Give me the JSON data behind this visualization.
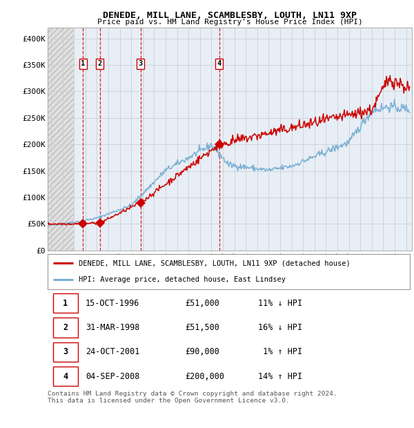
{
  "title": "DENEDE, MILL LANE, SCAMBLESBY, LOUTH, LN11 9XP",
  "subtitle": "Price paid vs. HM Land Registry's House Price Index (HPI)",
  "ylim": [
    0,
    420000
  ],
  "yticks": [
    0,
    50000,
    100000,
    150000,
    200000,
    250000,
    300000,
    350000,
    400000
  ],
  "ytick_labels": [
    "£0",
    "£50K",
    "£100K",
    "£150K",
    "£200K",
    "£250K",
    "£300K",
    "£350K",
    "£400K"
  ],
  "xlim_start": 1993.7,
  "xlim_end": 2025.5,
  "xticks": [
    1994,
    1995,
    1996,
    1997,
    1998,
    1999,
    2000,
    2001,
    2002,
    2003,
    2004,
    2005,
    2006,
    2007,
    2008,
    2009,
    2010,
    2011,
    2012,
    2013,
    2014,
    2015,
    2016,
    2017,
    2018,
    2019,
    2020,
    2021,
    2022,
    2023,
    2024,
    2025
  ],
  "sale_dates_num": [
    1996.79,
    1998.25,
    2001.81,
    2008.68
  ],
  "sale_prices": [
    51000,
    51500,
    90000,
    200000
  ],
  "sale_labels": [
    "1",
    "2",
    "3",
    "4"
  ],
  "vline_color": "#cc0000",
  "sale_color": "#cc0000",
  "legend_line1": "DENEDE, MILL LANE, SCAMBLESBY, LOUTH, LN11 9XP (detached house)",
  "legend_line2": "HPI: Average price, detached house, East Lindsey",
  "table_rows": [
    [
      "1",
      "15-OCT-1996",
      "£51,000",
      "11% ↓ HPI"
    ],
    [
      "2",
      "31-MAR-1998",
      "£51,500",
      "16% ↓ HPI"
    ],
    [
      "3",
      "24-OCT-2001",
      "£90,000",
      " 1% ↑ HPI"
    ],
    [
      "4",
      "04-SEP-2008",
      "£200,000",
      "14% ↑ HPI"
    ]
  ],
  "footnote": "Contains HM Land Registry data © Crown copyright and database right 2024.\nThis data is licensed under the Open Government Licence v3.0.",
  "hpi_color": "#7ab0d4",
  "price_line_color": "#cc0000",
  "plot_bg": "#e8eef5",
  "hatch_bg": "#e0e0e0",
  "grid_color": "#c8d0d8",
  "hatch_cutoff": 1996.0
}
